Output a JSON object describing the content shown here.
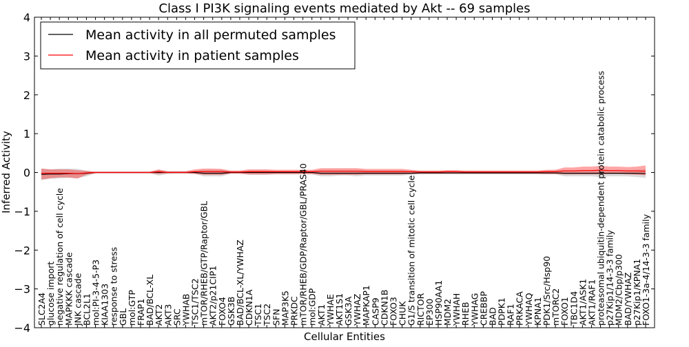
{
  "chart_data": {
    "type": "line",
    "title": "Class I PI3K signaling events mediated by Akt -- 69 samples",
    "xlabel": "Cellular Entities",
    "ylabel": "Inferred Activity",
    "ylim": [
      -4,
      4
    ],
    "yticks": [
      4,
      3,
      2,
      1,
      0,
      -1,
      -2,
      -3,
      -4
    ],
    "ytick_labels": [
      "4",
      "3",
      "2",
      "1",
      "0",
      "−1",
      "−2",
      "−3",
      "−4"
    ],
    "legend_position": "top-left",
    "categories": [
      "SLC2A4",
      "glucose import",
      "negative regulation of cell cycle",
      "MAPKKK cascade",
      "JNK cascade",
      "BCL2L1",
      "mol:PI-3-4-5-P3",
      "KIAA1303",
      "response to stress",
      "GBL",
      "mol:GTP",
      "FRAP1",
      "BAD/BCL-XL",
      "AKT2",
      "AKT3",
      "SRC",
      "YWHAB",
      "TSC1/TSC2",
      "mTOR/RHEB/GTP/Raptor/GBL",
      "AKT2/p21CIP1",
      "FOXO4",
      "GSK3B",
      "BAD/BCL-XL/YWHAZ",
      "CDKN1A",
      "TSC1",
      "TSC2",
      "SFN",
      "MAP3K5",
      "PRKDC",
      "mTOR/RHEB/GDP/Raptor/GBL/PRAS40",
      "mol:GDP",
      "AKT1",
      "YWHAE",
      "AKT1S1",
      "GSK3A",
      "YWHAZ",
      "MAPKAP1",
      "CASP9",
      "CDKN1B",
      "FOXO3",
      "CHUK",
      "G1/S transition of mitotic cell cycle",
      "RICTOR",
      "EP300",
      "HSP90AA1",
      "MDM2",
      "YWHAH",
      "RHEB",
      "YWHAG",
      "CREBBP",
      "BAD",
      "PDPK1",
      "RAF1",
      "PRKACA",
      "YWHAQ",
      "KPNA1",
      "PDK1/Src/Hsp90",
      "mTORC2",
      "FOXO1",
      "TBC1D4",
      "AKT1/ASK1",
      "AKT1/RAF1",
      "proteasomal ubiquitin-dependent protein catabolic process",
      "p27Kip1/14-3-3 family",
      "MDM2/Cbp/p300",
      "BAD/YWHAZ",
      "p27Kip1/KPNA1",
      "FOXO1-3a-4/14-3-3 family"
    ],
    "series": [
      {
        "name": "Mean activity in all permuted samples",
        "color": "#000000",
        "values": [
          -0.05,
          -0.04,
          -0.04,
          -0.03,
          -0.03,
          -0.02,
          0,
          0,
          0,
          0,
          0,
          0,
          0,
          0,
          0,
          0,
          0,
          0,
          -0.02,
          -0.02,
          -0.02,
          0,
          0,
          0,
          0,
          0,
          0,
          0,
          0,
          0,
          0,
          -0.02,
          -0.02,
          -0.02,
          -0.02,
          -0.02,
          -0.02,
          -0.02,
          -0.02,
          -0.02,
          -0.02,
          -0.02,
          -0.01,
          -0.01,
          -0.01,
          -0.01,
          -0.01,
          -0.01,
          -0.01,
          -0.01,
          -0.01,
          -0.01,
          -0.01,
          -0.01,
          -0.01,
          -0.01,
          -0.01,
          -0.01,
          -0.02,
          -0.02,
          -0.02,
          -0.02,
          -0.02,
          -0.02,
          -0.02,
          -0.02,
          -0.02,
          -0.03
        ],
        "band_low": [
          -0.2,
          -0.16,
          -0.15,
          -0.14,
          -0.14,
          -0.1,
          -0.02,
          -0.02,
          -0.02,
          -0.02,
          -0.02,
          -0.02,
          -0.02,
          -0.08,
          -0.04,
          -0.03,
          -0.03,
          -0.03,
          -0.1,
          -0.1,
          -0.1,
          -0.03,
          -0.03,
          -0.06,
          -0.06,
          -0.06,
          -0.05,
          -0.05,
          -0.05,
          -0.05,
          -0.05,
          -0.1,
          -0.1,
          -0.08,
          -0.08,
          -0.1,
          -0.08,
          -0.08,
          -0.08,
          -0.08,
          -0.08,
          -0.06,
          -0.05,
          -0.05,
          -0.05,
          -0.05,
          -0.05,
          -0.05,
          -0.05,
          -0.05,
          -0.05,
          -0.05,
          -0.05,
          -0.05,
          -0.05,
          -0.05,
          -0.05,
          -0.05,
          -0.1,
          -0.1,
          -0.1,
          -0.1,
          -0.12,
          -0.1,
          -0.1,
          -0.1,
          -0.12,
          -0.14
        ],
        "band_high": [
          0.1,
          0.08,
          0.1,
          0.1,
          0.09,
          0.05,
          0.02,
          0.02,
          0.02,
          0.02,
          0.02,
          0.02,
          0.02,
          0.06,
          0.03,
          0.03,
          0.03,
          0.03,
          0.07,
          0.07,
          0.07,
          0.03,
          0.03,
          0.05,
          0.05,
          0.05,
          0.04,
          0.04,
          0.04,
          0.04,
          0.04,
          0.07,
          0.07,
          0.07,
          0.07,
          0.07,
          0.06,
          0.06,
          0.06,
          0.06,
          0.06,
          0.05,
          0.04,
          0.04,
          0.04,
          0.04,
          0.04,
          0.04,
          0.04,
          0.04,
          0.04,
          0.04,
          0.04,
          0.04,
          0.04,
          0.04,
          0.04,
          0.05,
          0.06,
          0.06,
          0.06,
          0.06,
          0.07,
          0.06,
          0.06,
          0.06,
          0.07,
          0.08
        ]
      },
      {
        "name": "Mean activity in patient samples",
        "color": "#ff0000",
        "values": [
          -0.02,
          -0.02,
          -0.02,
          -0.02,
          -0.03,
          -0.01,
          0,
          0,
          0,
          0,
          0,
          0,
          0,
          0.02,
          0,
          0,
          0,
          0.02,
          0.02,
          0.02,
          0.02,
          0.01,
          0.01,
          0.02,
          0.02,
          0.02,
          0.02,
          0.02,
          0.02,
          0.02,
          0.02,
          0.03,
          0.03,
          0.03,
          0.03,
          0.03,
          0.02,
          0.02,
          0.02,
          0.02,
          0.02,
          0.02,
          0.01,
          0.01,
          0.01,
          0.02,
          0.02,
          0.01,
          0.01,
          0.01,
          0.01,
          0.01,
          0.01,
          0.01,
          0.01,
          0.01,
          0.02,
          0.02,
          0.04,
          0.04,
          0.05,
          0.05,
          0.06,
          0.05,
          0.05,
          0.04,
          0.04,
          0.03
        ],
        "band_low": [
          -0.18,
          -0.15,
          -0.13,
          -0.13,
          -0.16,
          -0.06,
          -0.02,
          -0.02,
          -0.02,
          -0.02,
          -0.02,
          -0.02,
          -0.02,
          -0.04,
          -0.02,
          -0.02,
          -0.02,
          -0.04,
          -0.06,
          -0.06,
          -0.06,
          -0.03,
          -0.03,
          -0.05,
          -0.05,
          -0.05,
          -0.04,
          -0.04,
          -0.04,
          -0.04,
          -0.04,
          -0.06,
          -0.06,
          -0.06,
          -0.06,
          -0.06,
          -0.05,
          -0.05,
          -0.05,
          -0.05,
          -0.05,
          -0.04,
          -0.03,
          -0.03,
          -0.03,
          -0.03,
          -0.03,
          -0.03,
          -0.03,
          -0.03,
          -0.03,
          -0.03,
          -0.03,
          -0.03,
          -0.03,
          -0.03,
          -0.04,
          -0.04,
          -0.05,
          -0.05,
          -0.05,
          -0.05,
          -0.05,
          -0.04,
          -0.04,
          -0.05,
          -0.06,
          -0.07
        ],
        "band_high": [
          0.1,
          0.08,
          0.08,
          0.08,
          0.06,
          0.04,
          0.02,
          0.02,
          0.02,
          0.02,
          0.02,
          0.02,
          0.02,
          0.08,
          0.03,
          0.03,
          0.03,
          0.08,
          0.1,
          0.1,
          0.09,
          0.05,
          0.05,
          0.08,
          0.08,
          0.08,
          0.07,
          0.07,
          0.07,
          0.07,
          0.07,
          0.11,
          0.11,
          0.11,
          0.11,
          0.11,
          0.09,
          0.09,
          0.09,
          0.09,
          0.09,
          0.07,
          0.05,
          0.05,
          0.05,
          0.06,
          0.06,
          0.05,
          0.05,
          0.05,
          0.05,
          0.05,
          0.05,
          0.05,
          0.05,
          0.05,
          0.07,
          0.07,
          0.13,
          0.13,
          0.15,
          0.15,
          0.17,
          0.15,
          0.15,
          0.14,
          0.15,
          0.18
        ]
      }
    ]
  }
}
